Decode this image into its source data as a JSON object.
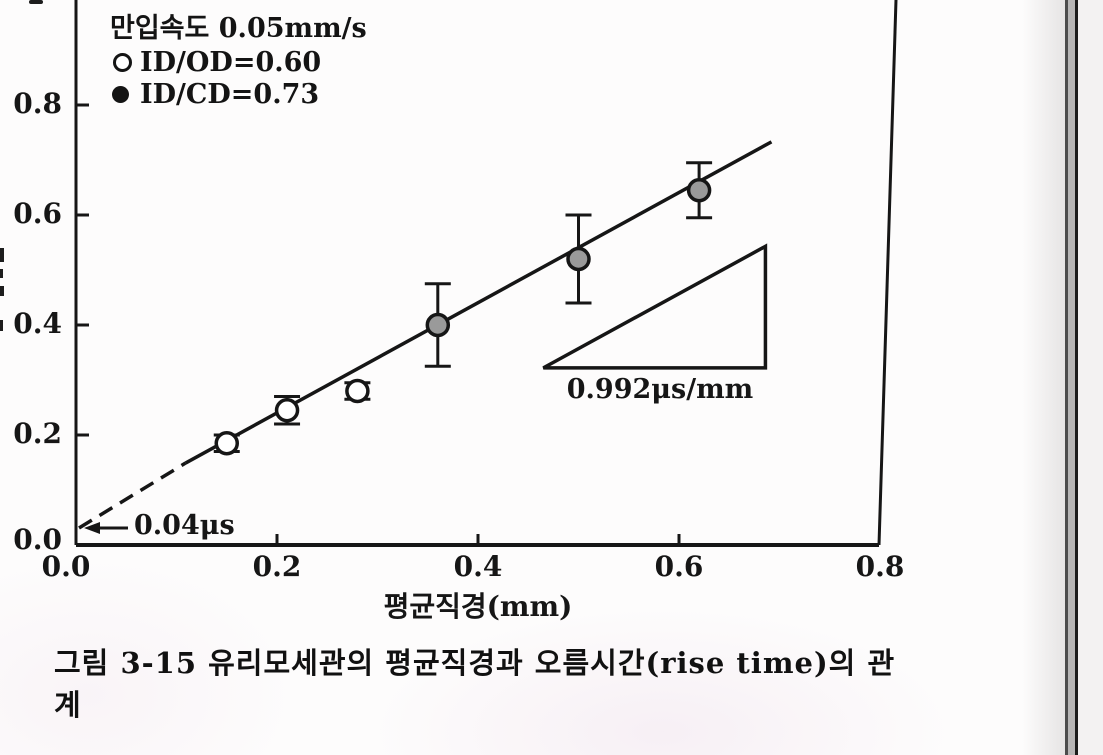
{
  "page": {
    "caption": "그림 3-15  유리모세관의 평균직경과 오름시간(rise time)의 관계"
  },
  "legend": {
    "title": "만입속도 0.05mm/s",
    "items": [
      {
        "marker": "open-circle",
        "label": "ID/OD=0.60"
      },
      {
        "marker": "filled-circle",
        "label": "ID/CD=0.73"
      }
    ]
  },
  "annotations": {
    "intercept_label": "0.04μs",
    "slope_label": "0.992μs/mm"
  },
  "axes": {
    "xlabel": "평균직경(mm)",
    "x_tick_labels": [
      "0.0",
      "0.2",
      "0.4",
      "0.6",
      "0.8"
    ],
    "y_tick_labels": [
      "0.0",
      "0.2",
      "0.4",
      "0.6",
      "0.8"
    ]
  },
  "colors": {
    "ink": "#161616",
    "filled_marker_fill": "#9a9a9a",
    "open_marker_fill": "#ffffff",
    "paper": "#fdfcfc",
    "gutter_band": "#b7b6b6"
  },
  "chart_data": {
    "type": "scatter",
    "title": "",
    "xlabel": "평균직경(mm)",
    "ylabel": "",
    "xlim": [
      0,
      0.8
    ],
    "ylim": [
      0,
      0.99
    ],
    "x_ticks": [
      0,
      0.2,
      0.4,
      0.6,
      0.8
    ],
    "y_ticks": [
      0,
      0.2,
      0.4,
      0.6,
      0.8
    ],
    "grid": false,
    "legend_position": "upper-left-inside",
    "legend_title": "만입속도 0.05mm/s",
    "series": [
      {
        "name": "ID/OD=0.60",
        "marker": "open-circle",
        "points": [
          {
            "x": 0.15,
            "y": 0.185,
            "yerr": 0.015
          },
          {
            "x": 0.21,
            "y": 0.245,
            "yerr": 0.025
          },
          {
            "x": 0.28,
            "y": 0.28,
            "yerr": 0.015
          }
        ]
      },
      {
        "name": "ID/CD=0.73",
        "marker": "filled-circle",
        "points": [
          {
            "x": 0.36,
            "y": 0.4,
            "yerr": 0.075
          },
          {
            "x": 0.5,
            "y": 0.52,
            "yerr": 0.08
          },
          {
            "x": 0.62,
            "y": 0.645,
            "yerr": 0.05
          }
        ]
      }
    ],
    "fit_line": {
      "slope_us_per_mm": 0.992,
      "intercept_us": 0.04,
      "start": {
        "x": 0.003,
        "y": 0.031
      },
      "dash_end": {
        "x": 0.109,
        "y": 0.149
      },
      "end": {
        "x": 0.692,
        "y": 0.733
      }
    },
    "slope_triangle": {
      "x_left": 0.465,
      "x_right": 0.686,
      "y_bottom": 0.322,
      "y_top": 0.543,
      "label": "0.992μs/mm"
    },
    "intercept_annotation": {
      "label": "0.04μs",
      "y_value": 0.04
    }
  }
}
